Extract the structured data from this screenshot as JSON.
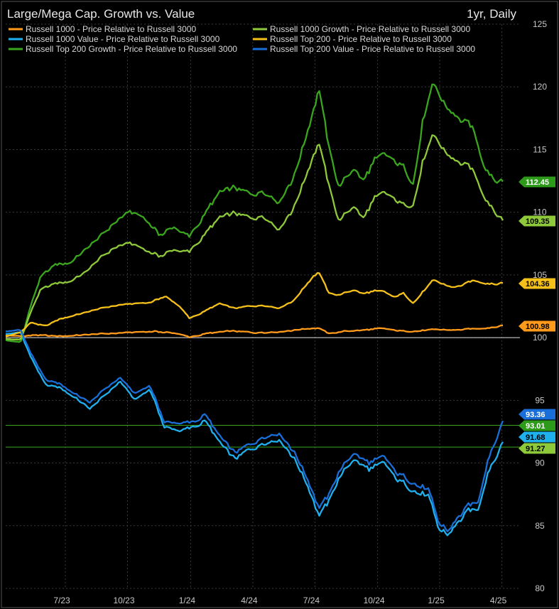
{
  "chart_data": {
    "type": "line",
    "title": "Large/Mega Cap. Growth vs. Value",
    "period": "1yr, Daily",
    "ylim": [
      80,
      125
    ],
    "yticks": [
      80,
      85,
      90,
      95,
      100,
      105,
      110,
      115,
      120,
      125
    ],
    "xticks": [
      {
        "label": "7/23",
        "t": 0.12
      },
      {
        "label": "10/23",
        "t": 0.245
      },
      {
        "label": "1/24",
        "t": 0.372
      },
      {
        "label": "4/24",
        "t": 0.497
      },
      {
        "label": "7/24",
        "t": 0.622
      },
      {
        "label": "10/24",
        "t": 0.748
      },
      {
        "label": "1/25",
        "t": 0.873
      },
      {
        "label": "4/25",
        "t": 0.998
      }
    ],
    "reference_lines": [
      100,
      93.01,
      91.27
    ],
    "grid": true,
    "legend_position": "top-left",
    "series": [
      {
        "name": "Russell 1000 - Price Relative to Russell 3000",
        "color": "#ff9a1a",
        "last_label": "100.98",
        "points": [
          [
            0,
            100.2
          ],
          [
            0.03,
            100.1
          ],
          [
            0.06,
            100.2
          ],
          [
            0.1,
            100.1
          ],
          [
            0.15,
            100.2
          ],
          [
            0.2,
            100.3
          ],
          [
            0.25,
            100.4
          ],
          [
            0.3,
            100.5
          ],
          [
            0.35,
            100.3
          ],
          [
            0.37,
            100.0
          ],
          [
            0.4,
            100.3
          ],
          [
            0.45,
            100.5
          ],
          [
            0.5,
            100.4
          ],
          [
            0.55,
            100.5
          ],
          [
            0.6,
            100.7
          ],
          [
            0.63,
            100.8
          ],
          [
            0.65,
            100.3
          ],
          [
            0.68,
            100.5
          ],
          [
            0.72,
            100.6
          ],
          [
            0.75,
            100.7
          ],
          [
            0.8,
            100.5
          ],
          [
            0.85,
            100.6
          ],
          [
            0.9,
            100.6
          ],
          [
            0.95,
            100.7
          ],
          [
            1.0,
            100.98
          ]
        ]
      },
      {
        "name": "Russell 1000 Value - Price Relative to Russell 3000",
        "color": "#1fb0ee",
        "last_label": "91.68",
        "points": [
          [
            0,
            100.3
          ],
          [
            0.03,
            100.4
          ],
          [
            0.05,
            98.5
          ],
          [
            0.08,
            96.2
          ],
          [
            0.11,
            96.0
          ],
          [
            0.14,
            95.2
          ],
          [
            0.17,
            94.3
          ],
          [
            0.2,
            95.4
          ],
          [
            0.23,
            96.5
          ],
          [
            0.26,
            95.0
          ],
          [
            0.29,
            95.9
          ],
          [
            0.32,
            92.8
          ],
          [
            0.35,
            92.6
          ],
          [
            0.38,
            92.8
          ],
          [
            0.4,
            93.4
          ],
          [
            0.43,
            91.6
          ],
          [
            0.46,
            90.2
          ],
          [
            0.49,
            91.0
          ],
          [
            0.52,
            91.7
          ],
          [
            0.55,
            92.0
          ],
          [
            0.58,
            90.5
          ],
          [
            0.61,
            88.0
          ],
          [
            0.63,
            86.0
          ],
          [
            0.65,
            86.8
          ],
          [
            0.67,
            88.8
          ],
          [
            0.7,
            90.3
          ],
          [
            0.73,
            89.5
          ],
          [
            0.76,
            89.8
          ],
          [
            0.79,
            88.5
          ],
          [
            0.82,
            88.0
          ],
          [
            0.85,
            87.3
          ],
          [
            0.87,
            84.5
          ],
          [
            0.89,
            84.2
          ],
          [
            0.91,
            85.3
          ],
          [
            0.93,
            86.0
          ],
          [
            0.95,
            86.2
          ],
          [
            0.97,
            89.5
          ],
          [
            1.0,
            91.68
          ]
        ]
      },
      {
        "name": "Russell Top 200 Growth - Price Relative to Russell 3000",
        "color": "#3aa61d",
        "last_label": "112.45",
        "points": [
          [
            0,
            99.8
          ],
          [
            0.03,
            99.6
          ],
          [
            0.05,
            102.5
          ],
          [
            0.07,
            104.8
          ],
          [
            0.1,
            105.8
          ],
          [
            0.13,
            106.0
          ],
          [
            0.16,
            107.0
          ],
          [
            0.19,
            108.0
          ],
          [
            0.22,
            109.2
          ],
          [
            0.25,
            110.0
          ],
          [
            0.28,
            109.5
          ],
          [
            0.31,
            108.2
          ],
          [
            0.34,
            108.8
          ],
          [
            0.37,
            108.0
          ],
          [
            0.4,
            109.8
          ],
          [
            0.43,
            111.5
          ],
          [
            0.46,
            111.8
          ],
          [
            0.49,
            111.4
          ],
          [
            0.52,
            111.8
          ],
          [
            0.55,
            111.0
          ],
          [
            0.58,
            113.0
          ],
          [
            0.6,
            115.5
          ],
          [
            0.62,
            118.5
          ],
          [
            0.63,
            120.2
          ],
          [
            0.65,
            115.0
          ],
          [
            0.67,
            112.0
          ],
          [
            0.7,
            113.5
          ],
          [
            0.72,
            112.5
          ],
          [
            0.74,
            114.0
          ],
          [
            0.76,
            114.3
          ],
          [
            0.78,
            114.0
          ],
          [
            0.8,
            113.5
          ],
          [
            0.82,
            112.5
          ],
          [
            0.84,
            117.5
          ],
          [
            0.86,
            119.8
          ],
          [
            0.88,
            118.5
          ],
          [
            0.9,
            117.8
          ],
          [
            0.92,
            117.2
          ],
          [
            0.94,
            116.5
          ],
          [
            0.96,
            114.0
          ],
          [
            0.98,
            113.0
          ],
          [
            1.0,
            112.45
          ]
        ]
      },
      {
        "name": "Russell 1000 Growth - Price Relative to Russell 3000",
        "color": "#8ec93a",
        "last_label": "109.35",
        "points": [
          [
            0,
            99.9
          ],
          [
            0.03,
            99.8
          ],
          [
            0.05,
            102.0
          ],
          [
            0.07,
            103.8
          ],
          [
            0.1,
            104.3
          ],
          [
            0.13,
            104.5
          ],
          [
            0.16,
            105.2
          ],
          [
            0.19,
            106.3
          ],
          [
            0.22,
            107.2
          ],
          [
            0.25,
            107.5
          ],
          [
            0.28,
            107.0
          ],
          [
            0.31,
            106.5
          ],
          [
            0.34,
            107.0
          ],
          [
            0.37,
            106.8
          ],
          [
            0.4,
            108.2
          ],
          [
            0.43,
            109.5
          ],
          [
            0.46,
            109.8
          ],
          [
            0.49,
            109.5
          ],
          [
            0.52,
            109.8
          ],
          [
            0.55,
            108.8
          ],
          [
            0.58,
            110.5
          ],
          [
            0.6,
            112.5
          ],
          [
            0.62,
            114.8
          ],
          [
            0.63,
            115.8
          ],
          [
            0.65,
            112.0
          ],
          [
            0.67,
            109.3
          ],
          [
            0.7,
            110.5
          ],
          [
            0.72,
            109.5
          ],
          [
            0.74,
            111.0
          ],
          [
            0.76,
            111.3
          ],
          [
            0.78,
            111.0
          ],
          [
            0.8,
            110.5
          ],
          [
            0.82,
            110.8
          ],
          [
            0.84,
            114.2
          ],
          [
            0.86,
            115.8
          ],
          [
            0.88,
            114.8
          ],
          [
            0.9,
            114.2
          ],
          [
            0.92,
            113.8
          ],
          [
            0.94,
            113.2
          ],
          [
            0.96,
            111.5
          ],
          [
            0.98,
            110.5
          ],
          [
            1.0,
            109.35
          ]
        ]
      },
      {
        "name": "Russell Top 200 - Price Relative to Russell 3000",
        "color": "#f5c01a",
        "last_label": "104.36",
        "points": [
          [
            0,
            100.1
          ],
          [
            0.03,
            100.4
          ],
          [
            0.05,
            101.2
          ],
          [
            0.08,
            100.9
          ],
          [
            0.11,
            101.5
          ],
          [
            0.14,
            101.8
          ],
          [
            0.17,
            102.1
          ],
          [
            0.2,
            102.4
          ],
          [
            0.23,
            102.6
          ],
          [
            0.26,
            102.7
          ],
          [
            0.29,
            102.8
          ],
          [
            0.32,
            103.3
          ],
          [
            0.35,
            102.5
          ],
          [
            0.37,
            101.5
          ],
          [
            0.4,
            102.1
          ],
          [
            0.43,
            102.7
          ],
          [
            0.46,
            102.3
          ],
          [
            0.49,
            102.5
          ],
          [
            0.52,
            102.6
          ],
          [
            0.55,
            102.4
          ],
          [
            0.58,
            103.0
          ],
          [
            0.6,
            104.0
          ],
          [
            0.62,
            105.0
          ],
          [
            0.63,
            105.3
          ],
          [
            0.65,
            103.5
          ],
          [
            0.67,
            103.4
          ],
          [
            0.7,
            103.8
          ],
          [
            0.72,
            103.5
          ],
          [
            0.74,
            103.7
          ],
          [
            0.76,
            103.6
          ],
          [
            0.78,
            103.2
          ],
          [
            0.8,
            103.5
          ],
          [
            0.82,
            102.8
          ],
          [
            0.84,
            103.7
          ],
          [
            0.86,
            104.5
          ],
          [
            0.88,
            104.2
          ],
          [
            0.9,
            104.0
          ],
          [
            0.92,
            104.2
          ],
          [
            0.94,
            104.5
          ],
          [
            0.96,
            104.4
          ],
          [
            1.0,
            104.36
          ]
        ]
      },
      {
        "name": "Russell Top 200 Value - Price Relative to Russell 3000",
        "color": "#1a6ed8",
        "last_label": "93.36",
        "points": [
          [
            0,
            100.5
          ],
          [
            0.03,
            100.6
          ],
          [
            0.05,
            98.8
          ],
          [
            0.08,
            96.6
          ],
          [
            0.11,
            96.3
          ],
          [
            0.14,
            95.5
          ],
          [
            0.17,
            94.8
          ],
          [
            0.2,
            95.9
          ],
          [
            0.23,
            96.8
          ],
          [
            0.26,
            95.5
          ],
          [
            0.29,
            96.2
          ],
          [
            0.32,
            93.2
          ],
          [
            0.35,
            93.2
          ],
          [
            0.38,
            93.2
          ],
          [
            0.4,
            93.9
          ],
          [
            0.43,
            92.1
          ],
          [
            0.46,
            90.7
          ],
          [
            0.49,
            91.4
          ],
          [
            0.52,
            92.2
          ],
          [
            0.55,
            92.5
          ],
          [
            0.58,
            91.0
          ],
          [
            0.61,
            88.5
          ],
          [
            0.63,
            86.6
          ],
          [
            0.65,
            87.3
          ],
          [
            0.67,
            89.3
          ],
          [
            0.7,
            90.8
          ],
          [
            0.73,
            90.0
          ],
          [
            0.76,
            90.3
          ],
          [
            0.79,
            89.0
          ],
          [
            0.82,
            88.6
          ],
          [
            0.85,
            87.8
          ],
          [
            0.87,
            85.0
          ],
          [
            0.89,
            84.5
          ],
          [
            0.91,
            85.7
          ],
          [
            0.93,
            86.4
          ],
          [
            0.95,
            86.8
          ],
          [
            0.97,
            90.5
          ],
          [
            1.0,
            93.36
          ]
        ]
      },
      {
        "name": "",
        "color": "#3aa61d",
        "role": "secondary-tag",
        "last_label": "93.01"
      },
      {
        "name": "",
        "color": "#3aa61d",
        "role": "secondary-tag",
        "last_label": "91.27"
      }
    ],
    "end_tags": [
      {
        "label": "112.45",
        "value": 112.45,
        "bg": "#2e9a1a",
        "fg": "#ffffff"
      },
      {
        "label": "109.35",
        "value": 109.35,
        "bg": "#8ec93a",
        "fg": "#000000"
      },
      {
        "label": "104.36",
        "value": 104.36,
        "bg": "#f5c01a",
        "fg": "#000000"
      },
      {
        "label": "100.98",
        "value": 100.98,
        "bg": "#ff9a1a",
        "fg": "#000000"
      },
      {
        "label": "93.36",
        "value": 93.36,
        "bg": "#1a6ed8",
        "fg": "#ffffff"
      },
      {
        "label": "93.01",
        "value": 93.01,
        "bg": "#2e9a1a",
        "fg": "#ffffff"
      },
      {
        "label": "91.68",
        "value": 91.68,
        "bg": "#1fb0ee",
        "fg": "#000000"
      },
      {
        "label": "91.27",
        "value": 91.27,
        "bg": "#8ec93a",
        "fg": "#000000"
      }
    ],
    "legend": [
      {
        "label": "Russell 1000 - Price Relative to Russell 3000",
        "color": "#ff9a1a"
      },
      {
        "label": "Russell 1000 Growth - Price Relative to Russell 3000",
        "color": "#8ec93a"
      },
      {
        "label": "Russell 1000 Value - Price Relative to Russell 3000",
        "color": "#1fb0ee"
      },
      {
        "label": "Russell Top 200 - Price Relative to Russell 3000",
        "color": "#f5c01a"
      },
      {
        "label": "Russell Top 200 Growth - Price Relative to Russell 3000",
        "color": "#3aa61d"
      },
      {
        "label": "Russell Top 200 Value - Price Relative to Russell 3000",
        "color": "#1a6ed8"
      }
    ]
  }
}
